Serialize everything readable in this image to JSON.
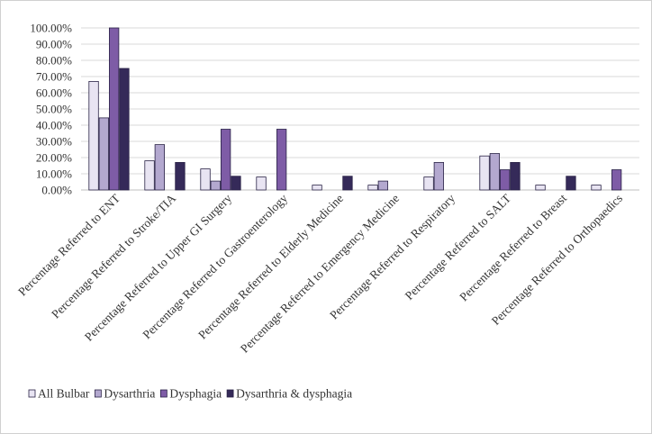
{
  "chart_data": {
    "type": "bar",
    "title": "",
    "xlabel": "",
    "ylabel": "",
    "ylim": [
      0,
      100
    ],
    "y_ticks": [
      "0.00%",
      "10.00%",
      "20.00%",
      "30.00%",
      "40.00%",
      "50.00%",
      "60.00%",
      "70.00%",
      "80.00%",
      "90.00%",
      "100.00%"
    ],
    "grid": true,
    "legend_position": "bottom-left",
    "categories": [
      "Percentage Referred to ENT",
      "Percentage Referred to Stroke/TIA",
      "Percentage Referred to Upper GI Surgery",
      "Percentage Referred to Gastroenterology",
      "Percentage Referred to Elderly Medicine",
      "Percentage Referred to Emergency Medicine",
      "Percentage Referred to Respiratory",
      "Percentage Referred to SALT",
      "Percentage Referred to Breast",
      "Percentage Referred to Orthopaedics"
    ],
    "series": [
      {
        "name": "All Bulbar",
        "color": "#e8e4f2",
        "values": [
          67,
          18,
          13,
          8,
          3,
          3,
          8,
          21,
          3,
          3
        ]
      },
      {
        "name": "Dysarthria",
        "color": "#b3a8cf",
        "values": [
          44.5,
          28,
          5.5,
          0,
          0,
          5.5,
          17,
          22.5,
          0,
          0
        ]
      },
      {
        "name": "Dysphagia",
        "color": "#7e5ca6",
        "values": [
          100,
          0,
          37.5,
          37.5,
          0,
          0,
          0,
          12.5,
          0,
          12.5
        ]
      },
      {
        "name": "Dysarthria & dysphagia",
        "color": "#352a59",
        "values": [
          75,
          17,
          8.5,
          0,
          8.5,
          0,
          0,
          17,
          8.5,
          0
        ]
      }
    ]
  }
}
